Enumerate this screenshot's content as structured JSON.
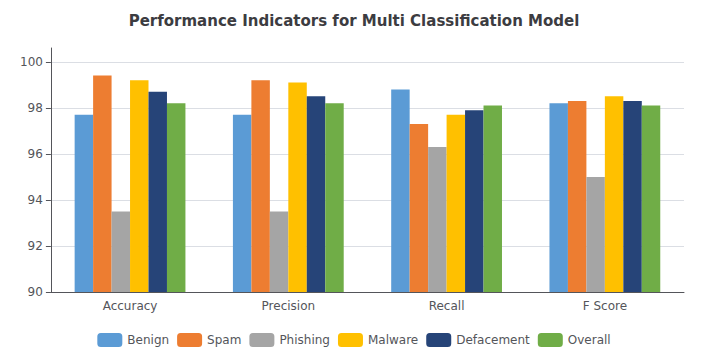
{
  "chart_data": {
    "type": "bar",
    "title": "Performance Indicators for Multi Classification Model",
    "categories": [
      "Accuracy",
      "Precision",
      "Recall",
      "F Score"
    ],
    "series": [
      {
        "name": "Benign",
        "color": "#5B9BD5",
        "values": [
          97.7,
          97.7,
          98.8,
          98.2
        ]
      },
      {
        "name": "Spam",
        "color": "#ED7D31",
        "values": [
          99.4,
          99.2,
          97.3,
          98.3
        ]
      },
      {
        "name": "Phishing",
        "color": "#A5A5A5",
        "values": [
          93.5,
          93.5,
          96.3,
          95.0
        ]
      },
      {
        "name": "Malware",
        "color": "#FFC000",
        "values": [
          99.2,
          99.1,
          97.7,
          98.5
        ]
      },
      {
        "name": "Defacement",
        "color": "#264478",
        "values": [
          98.7,
          98.5,
          97.9,
          98.3
        ]
      },
      {
        "name": "Overall",
        "color": "#70AD47",
        "values": [
          98.2,
          98.2,
          98.1,
          98.1
        ]
      }
    ],
    "ylim": [
      90,
      100.6
    ],
    "yticks": [
      90,
      92,
      94,
      96,
      98,
      100
    ],
    "grid": true,
    "legend": "bottom"
  }
}
